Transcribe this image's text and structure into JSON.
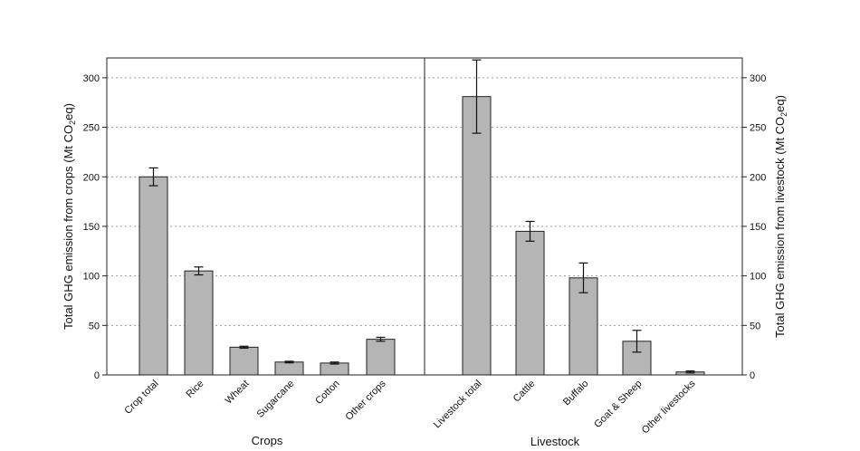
{
  "chart_data": {
    "type": "bar",
    "panels": [
      {
        "group_label": "Crops",
        "axis_label": "Total GHG emission from crops (Mt CO",
        "axis_label_sub": "2",
        "axis_label_end": "eq)",
        "axis_side": "left",
        "categories": [
          "Crop total",
          "Rice",
          "Wheat",
          "Sugarcane",
          "Cotton",
          "Other crops"
        ],
        "values": [
          200,
          105,
          28,
          13,
          12,
          36
        ],
        "errors": [
          9,
          4,
          1,
          0.8,
          1,
          2
        ]
      },
      {
        "group_label": "Livestock",
        "axis_label": "Total GHG emission from livestock (Mt CO",
        "axis_label_sub": "2",
        "axis_label_end": "eq)",
        "axis_side": "right",
        "categories": [
          "Livestock total",
          "Cattle",
          "Buffalo",
          "Goat & Sheep",
          "Other livestocks"
        ],
        "values": [
          281,
          145,
          98,
          34,
          3
        ],
        "errors": [
          37,
          10,
          15,
          11,
          1
        ]
      }
    ],
    "ylim": [
      0,
      320
    ],
    "yticks": [
      0,
      50,
      100,
      150,
      200,
      250,
      300
    ],
    "grid": true,
    "bar_color": "#b5b5b5",
    "bar_edge_color": "#222222"
  }
}
